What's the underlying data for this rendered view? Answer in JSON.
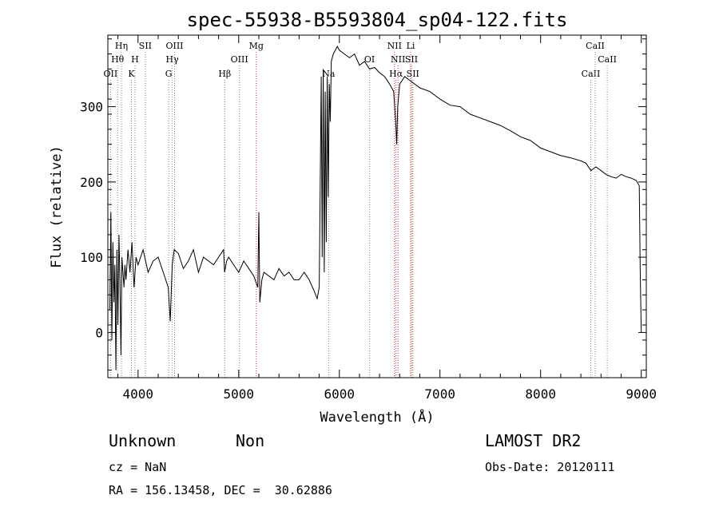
{
  "chart_data": {
    "type": "line",
    "title": "spec-55938-B5593804_sp04-122.fits",
    "xlabel": "Wavelength (Å)",
    "ylabel": "Flux (relative)",
    "xlim": [
      3700,
      9050
    ],
    "ylim": [
      -60,
      395
    ],
    "xticks": [
      4000,
      5000,
      6000,
      7000,
      8000,
      9000
    ],
    "yticks": [
      0,
      100,
      200,
      300
    ],
    "grid": false,
    "series": [
      {
        "x": [
          3720,
          3730,
          3740,
          3750,
          3760,
          3770,
          3780,
          3790,
          3800,
          3810,
          3820,
          3830,
          3840,
          3850,
          3860,
          3870,
          3880,
          3900,
          3920,
          3940,
          3960,
          3980,
          4000,
          4050,
          4100,
          4150,
          4200,
          4250,
          4300,
          4320,
          4340,
          4360,
          4400,
          4450,
          4500,
          4550,
          4600,
          4650,
          4700,
          4750,
          4800,
          4850,
          4860,
          4880,
          4900,
          4950,
          5000,
          5050,
          5100,
          5150,
          5190,
          5200,
          5210,
          5230,
          5250,
          5300,
          5350,
          5400,
          5450,
          5500,
          5550,
          5600,
          5650,
          5700,
          5750,
          5780,
          5800,
          5820,
          5830,
          5840,
          5850,
          5860,
          5870,
          5880,
          5890,
          5900,
          5910,
          5920,
          5940,
          5960,
          5980,
          6000,
          6050,
          6100,
          6150,
          6200,
          6250,
          6300,
          6350,
          6400,
          6450,
          6500,
          6540,
          6560,
          6570,
          6580,
          6600,
          6650,
          6700,
          6750,
          6800,
          6900,
          7000,
          7100,
          7200,
          7300,
          7400,
          7500,
          7600,
          7700,
          7800,
          7900,
          8000,
          8100,
          8200,
          8300,
          8400,
          8450,
          8500,
          8550,
          8600,
          8650,
          8700,
          8750,
          8800,
          8850,
          8900,
          8950,
          8980,
          8990,
          9000
        ],
        "y": [
          30,
          160,
          -10,
          120,
          40,
          90,
          -50,
          110,
          10,
          130,
          70,
          -30,
          100,
          80,
          60,
          90,
          70,
          110,
          80,
          120,
          60,
          100,
          90,
          110,
          80,
          95,
          100,
          80,
          60,
          15,
          90,
          110,
          105,
          85,
          95,
          110,
          80,
          100,
          95,
          90,
          100,
          110,
          80,
          95,
          100,
          90,
          80,
          95,
          85,
          75,
          60,
          160,
          40,
          70,
          80,
          75,
          70,
          85,
          75,
          80,
          70,
          70,
          80,
          70,
          55,
          45,
          60,
          340,
          100,
          350,
          80,
          320,
          120,
          340,
          180,
          330,
          280,
          360,
          370,
          375,
          380,
          375,
          370,
          365,
          370,
          355,
          360,
          350,
          352,
          345,
          340,
          330,
          320,
          280,
          250,
          300,
          330,
          340,
          335,
          330,
          325,
          320,
          310,
          302,
          300,
          290,
          285,
          280,
          275,
          268,
          260,
          255,
          245,
          240,
          235,
          232,
          228,
          225,
          215,
          220,
          215,
          210,
          207,
          205,
          210,
          207,
          205,
          202,
          195,
          80,
          0
        ]
      }
    ],
    "lines": [
      {
        "label": "OII",
        "wl": 3727,
        "row": 3,
        "color": "#888888"
      },
      {
        "label": "Hθ",
        "wl": 3797,
        "row": 2,
        "color": "#888888"
      },
      {
        "label": "Hη",
        "wl": 3835,
        "row": 1,
        "color": "#888888"
      },
      {
        "label": "K",
        "wl": 3934,
        "row": 3,
        "color": "#888888"
      },
      {
        "label": "H",
        "wl": 3969,
        "row": 2,
        "color": "#888888"
      },
      {
        "label": "SII",
        "wl": 4072,
        "row": 1,
        "color": "#888888"
      },
      {
        "label": "G",
        "wl": 4305,
        "row": 3,
        "color": "#888888"
      },
      {
        "label": "Hγ",
        "wl": 4340,
        "row": 2,
        "color": "#888888"
      },
      {
        "label": "OIII",
        "wl": 4363,
        "row": 1,
        "color": "#888888"
      },
      {
        "label": "Hβ",
        "wl": 4861,
        "row": 3,
        "color": "#888888"
      },
      {
        "label": "OIII",
        "wl": 5007,
        "row": 2,
        "color": "#888888"
      },
      {
        "label": "Mg",
        "wl": 5175,
        "row": 1,
        "color": "#cc3333"
      },
      {
        "label": "Na",
        "wl": 5894,
        "row": 3,
        "color": "#888888"
      },
      {
        "label": "OI",
        "wl": 6300,
        "row": 2,
        "color": "#888888"
      },
      {
        "label": "NII",
        "wl": 6548,
        "row": 1,
        "color": "#cc3333"
      },
      {
        "label": "Hα",
        "wl": 6563,
        "row": 3,
        "color": "#cc3333"
      },
      {
        "label": "NII",
        "wl": 6583,
        "row": 2,
        "color": "#cc3333"
      },
      {
        "label": "Li",
        "wl": 6708,
        "row": 1,
        "color": "#cc3333"
      },
      {
        "label": "SII",
        "wl": 6716,
        "row": 2,
        "color": "#cc3333"
      },
      {
        "label": "SII",
        "wl": 6731,
        "row": 3,
        "color": "#cc3333"
      },
      {
        "label": "CaII",
        "wl": 8498,
        "row": 3,
        "color": "#888888"
      },
      {
        "label": "CaII",
        "wl": 8542,
        "row": 1,
        "color": "#888888"
      },
      {
        "label": "CaII",
        "wl": 8662,
        "row": 2,
        "color": "#888888"
      }
    ]
  },
  "info": {
    "class_text": "Unknown",
    "subclass_text": "Non",
    "survey": "LAMOST DR2",
    "cz": "cz = NaN",
    "obs_date": "Obs-Date: 20120111",
    "radec": "RA = 156.13458, DEC =  30.62886"
  }
}
